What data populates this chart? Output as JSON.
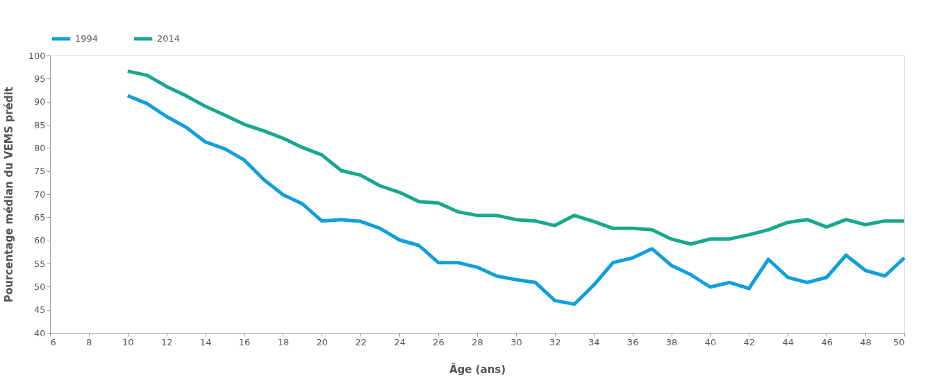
{
  "chart_data": {
    "type": "line",
    "xlabel": "Âge (ans)",
    "ylabel": "Pourcentage médian du VEMS prédit",
    "x": [
      10,
      11,
      12,
      13,
      14,
      15,
      16,
      17,
      18,
      19,
      20,
      21,
      22,
      23,
      24,
      25,
      26,
      27,
      28,
      29,
      30,
      31,
      32,
      33,
      34,
      35,
      36,
      37,
      38,
      39,
      40,
      41,
      42,
      43,
      44,
      45,
      46,
      47,
      48,
      49,
      50
    ],
    "series": [
      {
        "name": "1994",
        "color": "#0f9fdc",
        "values": [
          91.3,
          89.6,
          86.8,
          84.5,
          81.3,
          79.8,
          77.4,
          73.2,
          69.9,
          67.9,
          64.2,
          64.5,
          64.1,
          62.6,
          60.1,
          58.9,
          55.2,
          55.2,
          54.2,
          52.3,
          51.5,
          50.9,
          47.0,
          46.2,
          50.3,
          55.2,
          56.2,
          58.2,
          54.6,
          52.6,
          49.9,
          50.9,
          49.6,
          55.9,
          52.0,
          50.9,
          52.0,
          56.8,
          53.5,
          52.3,
          56.2
        ]
      },
      {
        "name": "2014",
        "color": "#17a88e",
        "values": [
          96.6,
          95.7,
          93.3,
          91.3,
          89.0,
          87.1,
          85.1,
          83.7,
          82.1,
          80.1,
          78.5,
          75.1,
          74.1,
          71.8,
          70.4,
          68.4,
          68.1,
          66.2,
          65.4,
          65.4,
          64.5,
          64.2,
          63.2,
          65.4,
          64.1,
          62.6,
          62.6,
          62.3,
          60.3,
          59.2,
          60.3,
          60.3,
          61.2,
          62.3,
          63.9,
          64.5,
          62.9,
          64.5,
          63.4,
          64.2,
          64.2
        ]
      }
    ],
    "xlim": [
      6,
      50
    ],
    "xticks": [
      6,
      8,
      10,
      12,
      14,
      16,
      18,
      20,
      22,
      24,
      26,
      28,
      30,
      32,
      34,
      36,
      38,
      40,
      42,
      44,
      46,
      48,
      50
    ],
    "ylim": [
      40,
      100
    ],
    "yticks": [
      40,
      45,
      50,
      55,
      60,
      65,
      70,
      75,
      80,
      85,
      90,
      95,
      100
    ],
    "grid": false,
    "legend": "top left",
    "marker": "none",
    "line_style": "solid"
  }
}
